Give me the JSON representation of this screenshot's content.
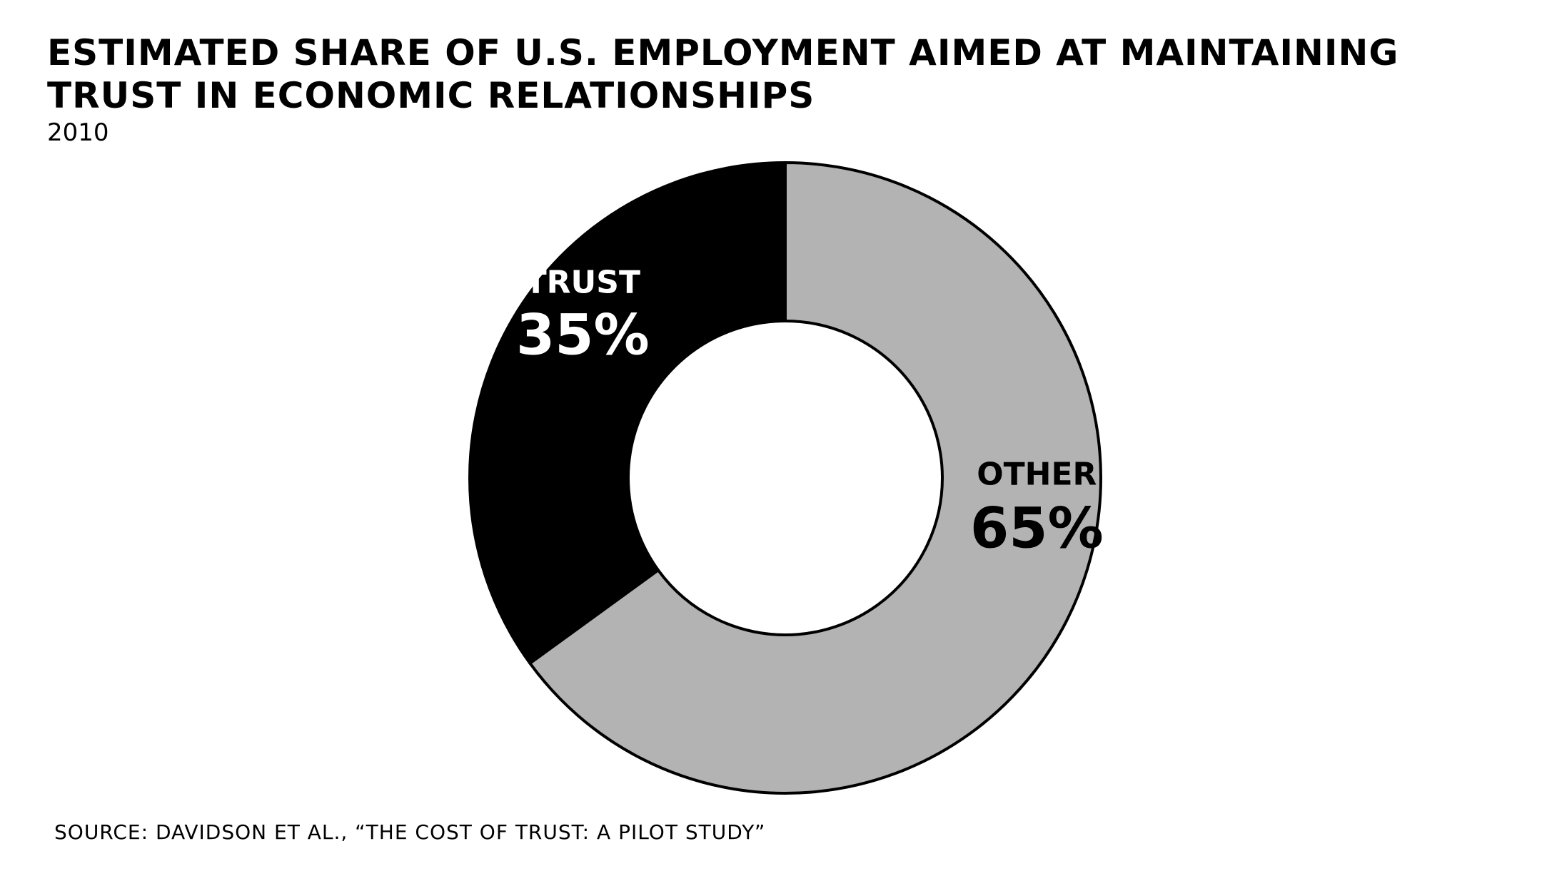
{
  "chart_data": {
    "type": "pie",
    "title_lines": [
      "ESTIMATED SHARE OF U.S. EMPLOYMENT AIMED AT MAINTAINING",
      "TRUST IN ECONOMIC RELATIONSHIPS"
    ],
    "subtitle": "2010",
    "source": "SOURCE: DAVIDSON ET AL., “THE COST OF TRUST: A PILOT STUDY”",
    "donut": true,
    "slices": [
      {
        "name": "TRUST",
        "value": 35,
        "value_label": "35%",
        "color": "#000000",
        "label_color": "#ffffff"
      },
      {
        "name": "OTHER",
        "value": 65,
        "value_label": "65%",
        "color": "#b3b3b3",
        "label_color": "#000000"
      }
    ]
  }
}
